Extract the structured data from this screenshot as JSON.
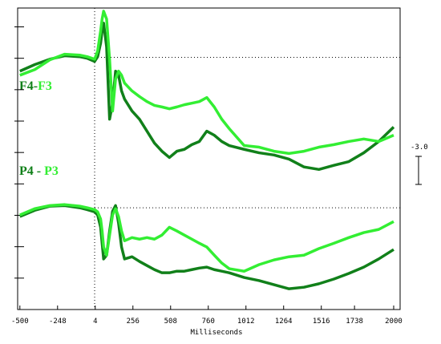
{
  "chart_data": {
    "type": "line",
    "x_label": "Milliseconds",
    "calibration_label": "-3.0",
    "label_separators": [
      "-",
      " - "
    ],
    "xlim": [
      -515,
      2043
    ],
    "ylim": [
      0,
      9.6
    ],
    "xticks": [
      -500,
      -248,
      4,
      256,
      508,
      760,
      1012,
      1264,
      1516,
      1738,
      2000
    ],
    "yticks": [
      1,
      2,
      3,
      4,
      5,
      6,
      7,
      8,
      9
    ],
    "reference_lines": [
      8.03,
      3.24
    ],
    "x_reference": 0,
    "x": [
      -500,
      -400,
      -300,
      -200,
      -100,
      -50,
      0,
      20,
      40,
      50,
      60,
      80,
      100,
      120,
      140,
      160,
      180,
      200,
      250,
      300,
      350,
      400,
      450,
      500,
      550,
      600,
      650,
      700,
      750,
      800,
      850,
      900,
      1000,
      1100,
      1200,
      1300,
      1400,
      1500,
      1600,
      1700,
      1800,
      1900,
      2000
    ],
    "series": [
      {
        "name": "F4",
        "color": "#11801a",
        "values": [
          7.59,
          7.8,
          7.97,
          8.08,
          8.05,
          8.0,
          7.9,
          8.05,
          8.48,
          8.87,
          9.12,
          8.36,
          6.06,
          6.57,
          7.59,
          7.46,
          6.96,
          6.7,
          6.32,
          6.06,
          5.68,
          5.3,
          5.04,
          4.84,
          5.04,
          5.1,
          5.25,
          5.35,
          5.68,
          5.55,
          5.35,
          5.22,
          5.1,
          4.99,
          4.92,
          4.79,
          4.54,
          4.46,
          4.59,
          4.71,
          4.99,
          5.35,
          5.81
        ]
      },
      {
        "name": "F3",
        "color": "#33ee33",
        "values": [
          7.46,
          7.64,
          7.95,
          8.13,
          8.1,
          8.05,
          7.97,
          8.23,
          8.87,
          9.25,
          9.5,
          9.25,
          7.97,
          6.32,
          7.34,
          7.59,
          7.46,
          7.21,
          6.96,
          6.78,
          6.62,
          6.5,
          6.45,
          6.39,
          6.45,
          6.52,
          6.57,
          6.62,
          6.75,
          6.45,
          6.06,
          5.76,
          5.22,
          5.17,
          5.04,
          4.97,
          5.04,
          5.17,
          5.25,
          5.35,
          5.43,
          5.35,
          5.55
        ]
      },
      {
        "name": "P4",
        "color": "#11801a",
        "values": [
          2.96,
          3.16,
          3.29,
          3.31,
          3.24,
          3.18,
          3.11,
          3.01,
          2.62,
          2.11,
          1.61,
          1.73,
          2.5,
          3.13,
          3.31,
          2.75,
          1.99,
          1.61,
          1.68,
          1.53,
          1.4,
          1.27,
          1.17,
          1.17,
          1.22,
          1.22,
          1.27,
          1.32,
          1.35,
          1.27,
          1.22,
          1.17,
          1.02,
          0.92,
          0.79,
          0.66,
          0.71,
          0.82,
          0.97,
          1.15,
          1.35,
          1.61,
          1.91
        ]
      },
      {
        "name": "P3",
        "color": "#33ee33",
        "values": [
          3.01,
          3.21,
          3.31,
          3.34,
          3.29,
          3.24,
          3.18,
          3.11,
          2.88,
          2.5,
          1.99,
          1.73,
          2.37,
          3.01,
          3.21,
          2.96,
          2.5,
          2.19,
          2.29,
          2.24,
          2.29,
          2.24,
          2.37,
          2.62,
          2.5,
          2.37,
          2.24,
          2.11,
          1.99,
          1.73,
          1.48,
          1.3,
          1.22,
          1.43,
          1.58,
          1.68,
          1.73,
          1.94,
          2.11,
          2.29,
          2.45,
          2.55,
          2.8
        ]
      }
    ]
  }
}
